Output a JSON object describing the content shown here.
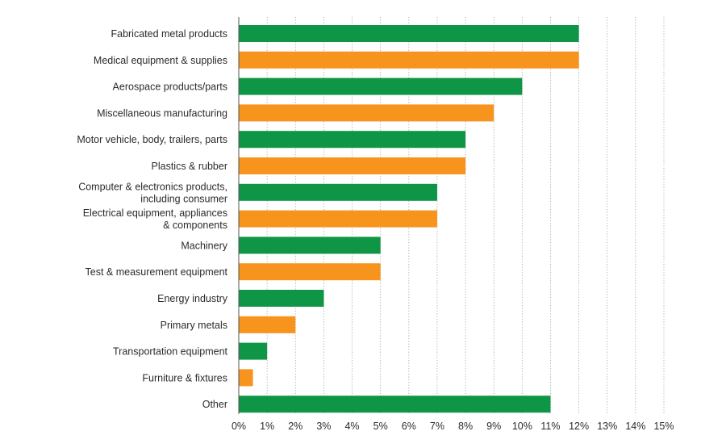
{
  "chart_data": {
    "type": "bar",
    "orientation": "horizontal",
    "categories": [
      "Fabricated metal products",
      "Medical equipment & supplies",
      "Aerospace products/parts",
      "Miscellaneous manufacturing",
      "Motor vehicle, body, trailers, parts",
      "Plastics & rubber",
      "Computer & electronics products,\nincluding consumer",
      "Electrical equipment, appliances\n& components",
      "Machinery",
      "Test & measurement equipment",
      "Energy industry",
      "Primary metals",
      "Transportation equipment",
      "Furniture & fixtures",
      "Other"
    ],
    "values": [
      12,
      12,
      10,
      9,
      8,
      8,
      7,
      7,
      5,
      5,
      3,
      2,
      1,
      0.5,
      11
    ],
    "bar_colors": [
      "#0e9646",
      "#f7941d",
      "#0e9646",
      "#f7941d",
      "#0e9646",
      "#f7941d",
      "#0e9646",
      "#f7941d",
      "#0e9646",
      "#f7941d",
      "#0e9646",
      "#f7941d",
      "#0e9646",
      "#f7941d",
      "#0e9646"
    ],
    "x_ticks": [
      "0%",
      "1%",
      "2%",
      "3%",
      "4%",
      "5%",
      "6%",
      "7%",
      "8%",
      "9%",
      "10%",
      "11%",
      "12%",
      "13%",
      "14%",
      "15%"
    ],
    "xlim": [
      0,
      15
    ],
    "unit": "%",
    "grid": "vertical-dotted",
    "title": "",
    "xlabel": "",
    "ylabel": ""
  }
}
